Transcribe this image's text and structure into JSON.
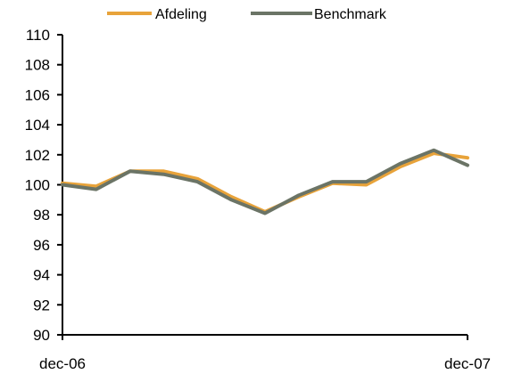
{
  "chart_data": {
    "type": "line",
    "title": "",
    "xlabel": "",
    "ylabel": "",
    "x_tick_labels": [
      "dec-06",
      "dec-07"
    ],
    "x_count": 13,
    "ylim": [
      90,
      110
    ],
    "yticks": [
      90,
      92,
      94,
      96,
      98,
      100,
      102,
      104,
      106,
      108,
      110
    ],
    "grid": false,
    "legend_position": "top",
    "series": [
      {
        "name": "Afdeling",
        "color": "#E8A33A",
        "values": [
          100.1,
          99.9,
          100.9,
          100.9,
          100.4,
          99.2,
          98.2,
          99.2,
          100.1,
          100.0,
          101.2,
          102.1,
          101.8
        ]
      },
      {
        "name": "Benchmark",
        "color": "#6B7466",
        "values": [
          100.0,
          99.7,
          100.9,
          100.7,
          100.2,
          99.0,
          98.1,
          99.3,
          100.2,
          100.2,
          101.4,
          102.3,
          101.3
        ]
      }
    ]
  }
}
